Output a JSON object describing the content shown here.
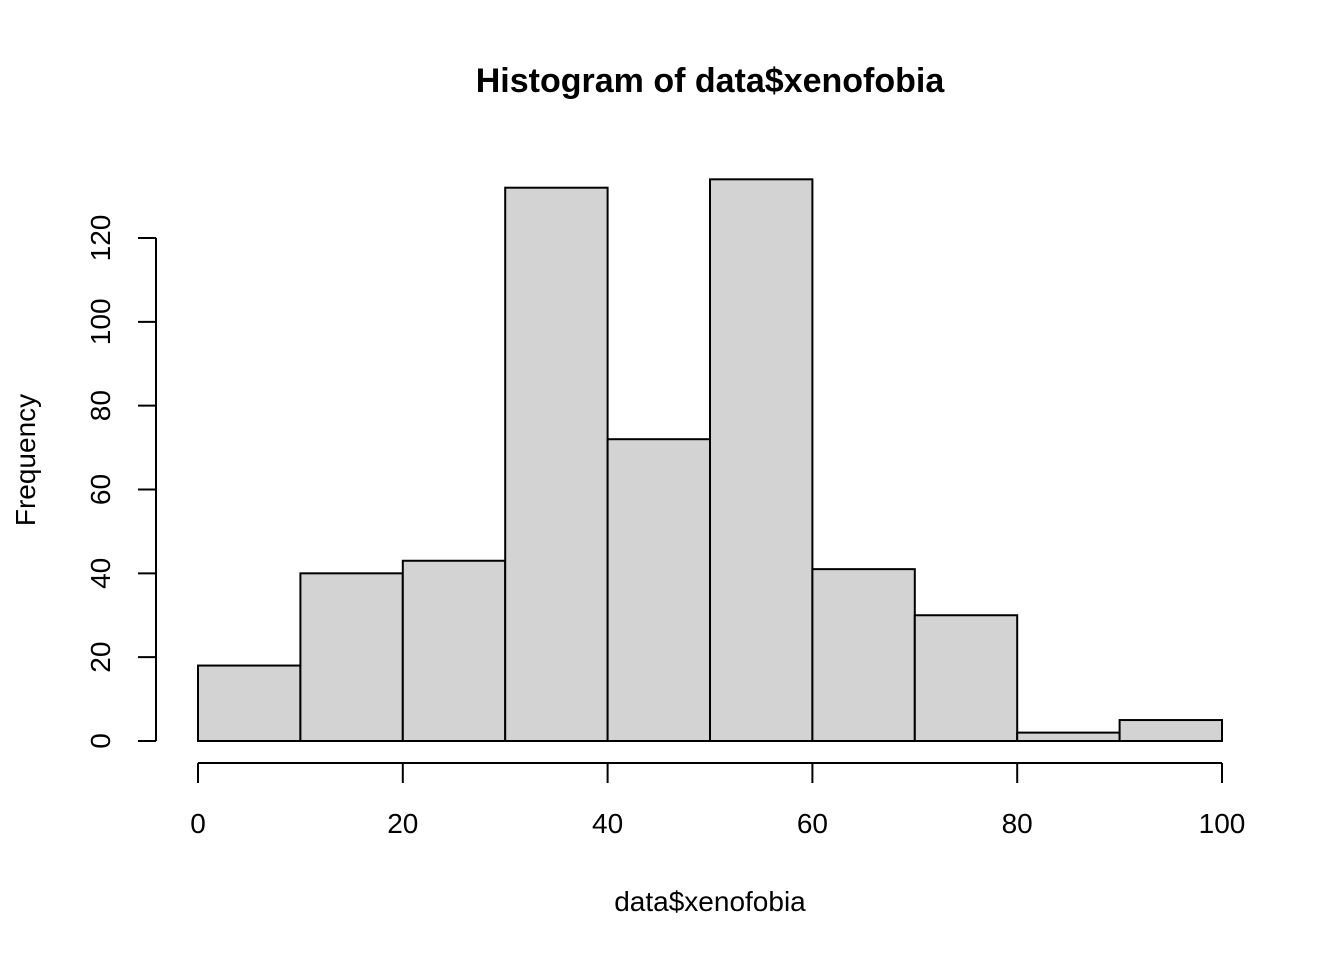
{
  "chart_data": {
    "type": "bar",
    "subtype": "histogram",
    "title": "Histogram of data$xenofobia",
    "xlabel": "data$xenofobia",
    "ylabel": "Frequency",
    "bin_edges": [
      0,
      10,
      20,
      30,
      40,
      50,
      60,
      70,
      80,
      90,
      100
    ],
    "values": [
      18,
      40,
      43,
      132,
      72,
      134,
      41,
      30,
      2,
      5
    ],
    "xlim": [
      0,
      100
    ],
    "ylim": [
      0,
      140
    ],
    "x_ticks": [
      0,
      20,
      40,
      60,
      80,
      100
    ],
    "y_ticks": [
      0,
      20,
      40,
      60,
      80,
      100,
      120
    ],
    "grid": false,
    "legend": "none",
    "bar_color": "#d3d3d3",
    "edge_color": "#000000"
  }
}
